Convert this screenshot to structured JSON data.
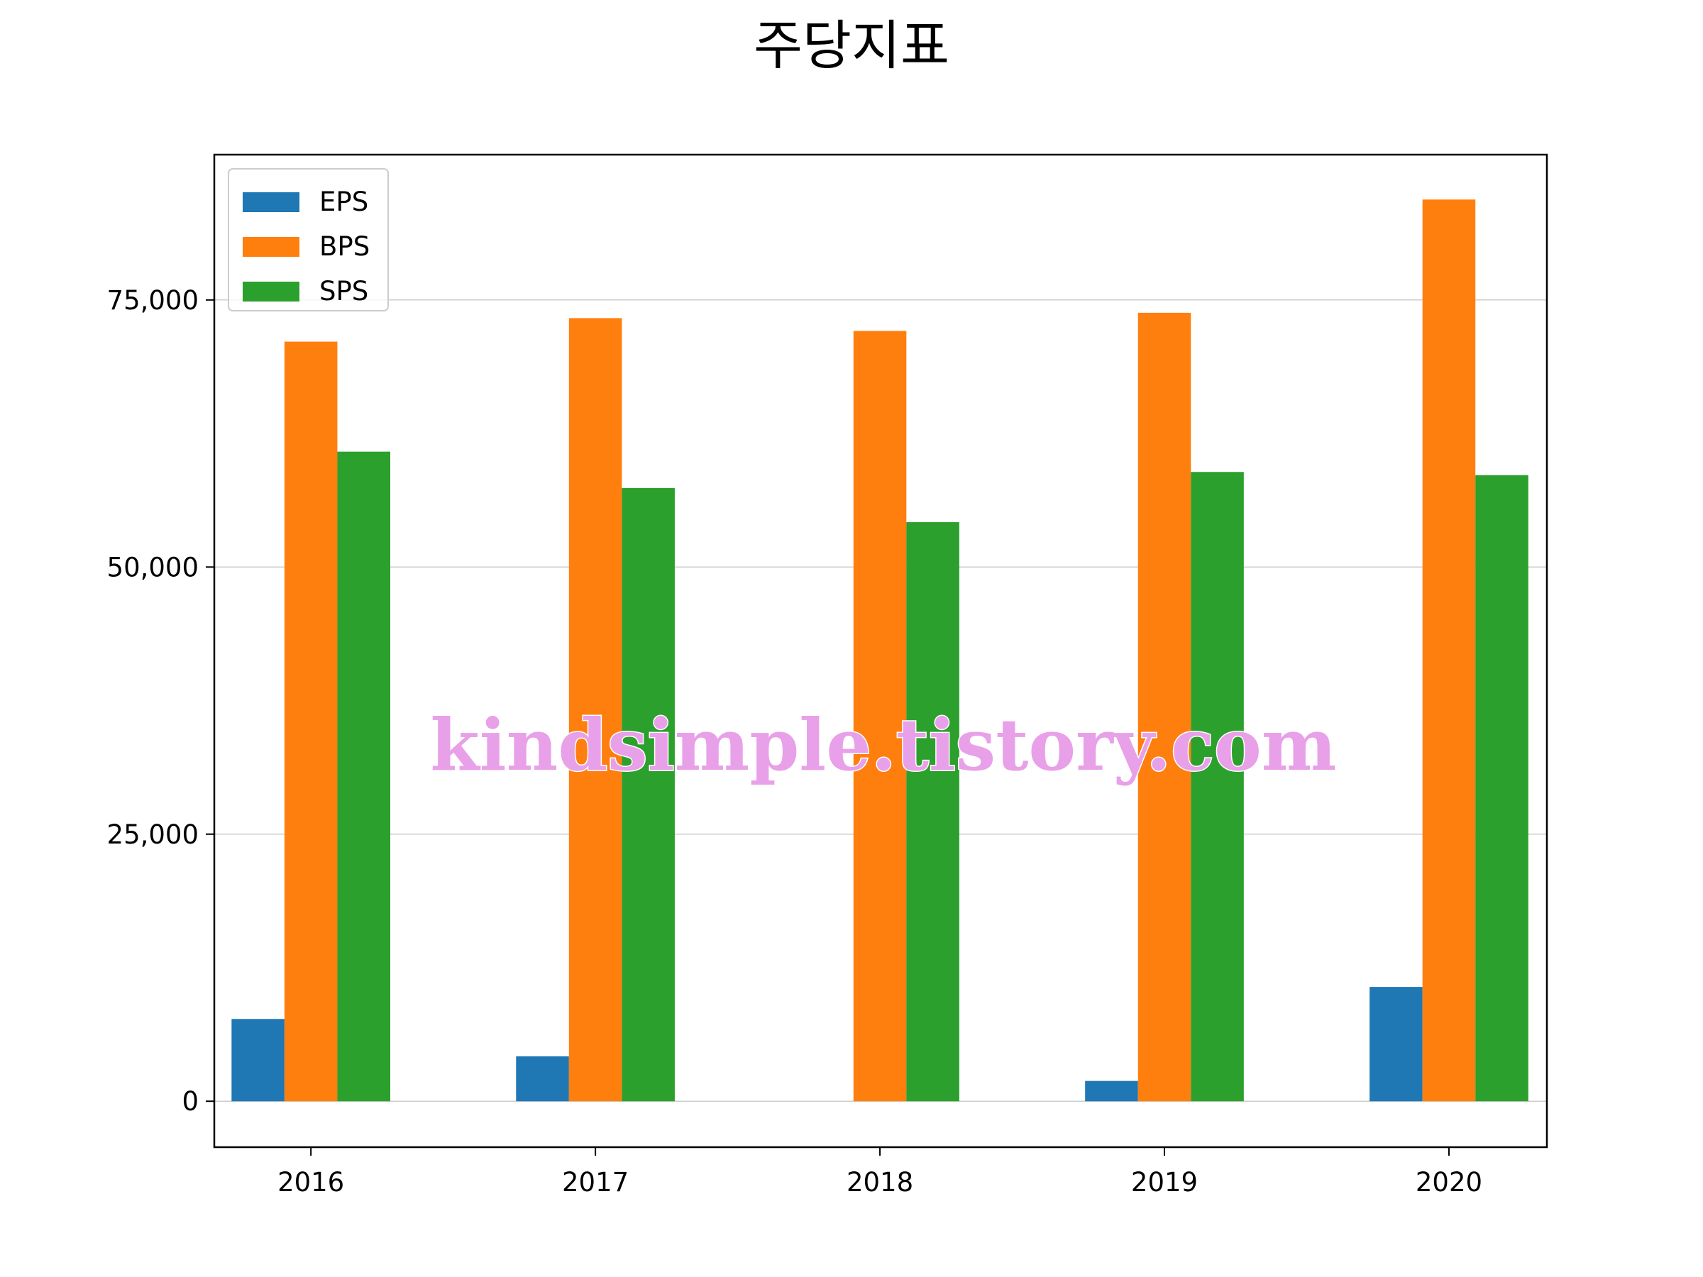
{
  "chart_data": {
    "type": "bar",
    "title": "주당지표",
    "xlabel": "",
    "ylabel": "",
    "categories": [
      "2016",
      "2017",
      "2018",
      "2019",
      "2020"
    ],
    "series": [
      {
        "name": "EPS",
        "color": "#1f77b4",
        "values": [
          7700,
          4200,
          0,
          1900,
          10700
        ]
      },
      {
        "name": "BPS",
        "color": "#ff7f0e",
        "values": [
          71100,
          73300,
          72100,
          73800,
          84400
        ]
      },
      {
        "name": "SPS",
        "color": "#2ca02c",
        "values": [
          60800,
          57400,
          54200,
          58900,
          58600
        ]
      }
    ],
    "ylim": [
      -4300,
      88600
    ],
    "yticks": [
      0,
      25000,
      50000,
      75000
    ],
    "ytick_labels": [
      "0",
      "25,000",
      "50,000",
      "75,000"
    ],
    "grid": "y",
    "legend_position": "top-left",
    "watermark": "kindsimple.tistory.com"
  }
}
